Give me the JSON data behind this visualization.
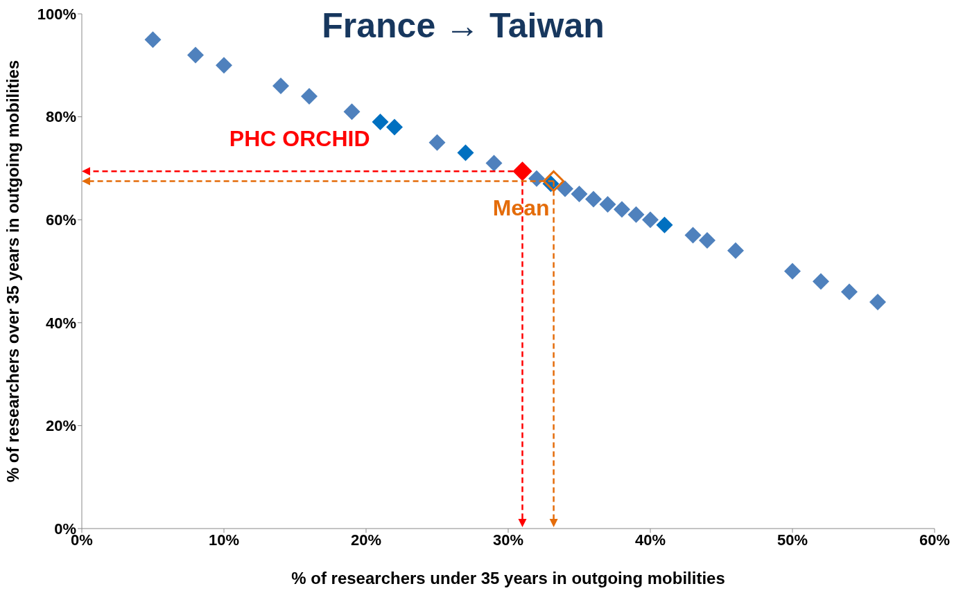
{
  "chart_data": {
    "type": "scatter",
    "title": "France → Taiwan",
    "xlabel": "% of researchers under 35 years in outgoing mobilities",
    "ylabel": "% of researchers over 35 years in outgoing mobilities",
    "xlim": [
      0,
      60
    ],
    "ylim": [
      0,
      100
    ],
    "xticks": [
      {
        "value": 0,
        "label": "0%"
      },
      {
        "value": 10,
        "label": "10%"
      },
      {
        "value": 20,
        "label": "20%"
      },
      {
        "value": 30,
        "label": "30%"
      },
      {
        "value": 40,
        "label": "40%"
      },
      {
        "value": 50,
        "label": "50%"
      },
      {
        "value": 60,
        "label": "60%"
      }
    ],
    "yticks": [
      {
        "value": 0,
        "label": "0%"
      },
      {
        "value": 20,
        "label": "20%"
      },
      {
        "value": 40,
        "label": "40%"
      },
      {
        "value": 60,
        "label": "60%"
      },
      {
        "value": 80,
        "label": "80%"
      },
      {
        "value": 100,
        "label": "100%"
      }
    ],
    "marker": "diamond",
    "grid": false,
    "series": [
      {
        "x": [
          5,
          8,
          10,
          14,
          16,
          19,
          21,
          22,
          25,
          27,
          29,
          32,
          33,
          34,
          35,
          36,
          37,
          38,
          39,
          40,
          41,
          43,
          44,
          46,
          50,
          52,
          54,
          56
        ],
        "values": [
          95,
          92,
          90,
          86,
          84,
          81,
          79,
          78,
          75,
          73,
          71,
          68,
          67,
          66,
          65,
          64,
          63,
          62,
          61,
          60,
          59,
          57,
          56,
          54,
          50,
          48,
          46,
          44
        ],
        "colors": [
          "#4f81bd",
          "#4f81bd",
          "#4f81bd",
          "#4f81bd",
          "#4f81bd",
          "#4f81bd",
          "#0070c0",
          "#0070c0",
          "#4f81bd",
          "#0070c0",
          "#4f81bd",
          "#4f81bd",
          "#0070c0",
          "#4f81bd",
          "#4f81bd",
          "#4f81bd",
          "#4f81bd",
          "#4f81bd",
          "#4f81bd",
          "#4f81bd",
          "#0070c0",
          "#4f81bd",
          "#4f81bd",
          "#4f81bd",
          "#4f81bd",
          "#4f81bd",
          "#4f81bd",
          "#4f81bd"
        ]
      },
      {
        "name": "PHC ORCHID",
        "color": "#ff0000",
        "x": [
          31
        ],
        "values": [
          69.4
        ]
      },
      {
        "name": "Mean",
        "color": "#e46c0a",
        "x": [
          33.2
        ],
        "values": [
          67.5
        ]
      }
    ]
  }
}
